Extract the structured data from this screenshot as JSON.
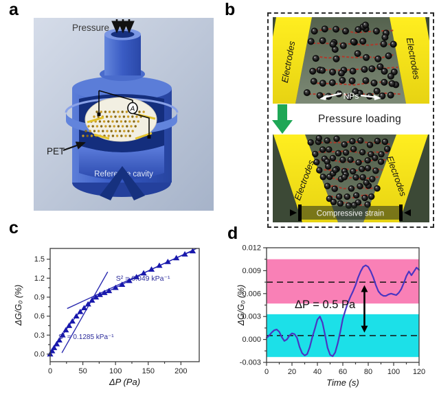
{
  "figure": {
    "panel_labels": {
      "a": "a",
      "b": "b",
      "c": "c",
      "d": "d"
    }
  },
  "panel_a": {
    "pressure": "Pressure",
    "pet": "PET",
    "reference_cavity": "Reference cavity",
    "ammeter": "A",
    "colors": {
      "body_blue": "#3a5ec8",
      "light_blue": "#7b97e4",
      "dark_interior": "#142e7d",
      "membrane": "#f2efe2",
      "gold": "#c99b25"
    }
  },
  "panel_b": {
    "electrodes": "Electrodes",
    "nps": "NPs",
    "pressure_loading": "Pressure loading",
    "compressive_strain": "Compressive strain",
    "colors": {
      "electrode_yellow": "#f6e71c",
      "green_arrow": "#1ea756",
      "red_arrow": "#dd1414",
      "chain_red": "#b83224",
      "photo_bg": "#3c4936"
    }
  },
  "chart_data": [
    {
      "id": "c",
      "type": "scatter",
      "marker": "triangle-up",
      "connect": true,
      "color": "#1818ac",
      "fit_color": "#2c2cb0",
      "xlabel": "ΔP (Pa)",
      "ylabel": "ΔG/G₀ (%)",
      "xlim": [
        0,
        228
      ],
      "ylim": [
        -0.12,
        1.67
      ],
      "xticks": [
        0,
        50,
        100,
        150,
        200
      ],
      "xtick_labels": [
        "0",
        "50",
        "100",
        "150",
        "200"
      ],
      "yticks": [
        0,
        0.3,
        0.6,
        0.9,
        1.2,
        1.5
      ],
      "ytick_labels": [
        "0.0",
        "0.3",
        "0.6",
        "0.9",
        "1.2",
        "1.5"
      ],
      "x": [
        0,
        3,
        6,
        10,
        14,
        19,
        24,
        29,
        34,
        40,
        46,
        52,
        58,
        64,
        70,
        76,
        83,
        90,
        100,
        110,
        121,
        132,
        143,
        155,
        167,
        180,
        193,
        206,
        218
      ],
      "y": [
        0.0,
        0.05,
        0.1,
        0.16,
        0.22,
        0.3,
        0.38,
        0.45,
        0.52,
        0.6,
        0.67,
        0.73,
        0.79,
        0.85,
        0.9,
        0.94,
        0.97,
        1.0,
        1.05,
        1.1,
        1.16,
        1.22,
        1.28,
        1.34,
        1.4,
        1.46,
        1.52,
        1.58,
        1.63
      ],
      "fit_lines": [
        {
          "name": "S1",
          "x1": 18,
          "y1": 0.02,
          "x2": 88,
          "y2": 1.3
        },
        {
          "name": "S2",
          "x1": 26,
          "y1": 0.72,
          "x2": 224,
          "y2": 1.67
        }
      ],
      "annotations": [
        {
          "text": "S² = 0.049 kPa⁻¹",
          "x": 142,
          "y": 1.16,
          "size": 10.5,
          "color": "#2a2a9a"
        },
        {
          "text": "S¹ = 0.1285 kPa⁻¹",
          "x": 55,
          "y": 0.24,
          "size": 10,
          "color": "#2a2a9a"
        }
      ]
    },
    {
      "id": "d",
      "type": "line",
      "color": "#4a35c2",
      "xlabel": "Time (s)",
      "ylabel": "ΔG/G₀ (%)",
      "xlim": [
        0,
        120
      ],
      "ylim": [
        -0.003,
        0.012
      ],
      "xticks": [
        0,
        20,
        40,
        60,
        80,
        100,
        120
      ],
      "xtick_labels": [
        "0",
        "20",
        "40",
        "60",
        "80",
        "100",
        "120"
      ],
      "yticks": [
        -0.003,
        0,
        0.003,
        0.006,
        0.009,
        0.012
      ],
      "ytick_labels": [
        "-0.003",
        "0.000",
        "0.003",
        "0.006",
        "0.009",
        "0.012"
      ],
      "x": [
        0,
        2,
        4,
        6,
        8,
        10,
        12,
        14,
        16,
        18,
        20,
        22,
        24,
        26,
        28,
        30,
        32,
        34,
        36,
        38,
        40,
        42,
        44,
        46,
        48,
        50,
        52,
        54,
        56,
        58,
        60,
        62,
        64,
        66,
        68,
        70,
        72,
        74,
        76,
        78,
        80,
        82,
        84,
        86,
        88,
        90,
        92,
        94,
        96,
        98,
        100,
        102,
        104,
        106,
        108,
        110,
        112,
        114,
        116,
        118,
        120
      ],
      "y": [
        0.0002,
        0.0005,
        0.0009,
        0.0012,
        0.0013,
        0.001,
        0.0003,
        -0.0002,
        0.0,
        0.0005,
        0.0008,
        0.0007,
        0.0002,
        -0.001,
        -0.0018,
        -0.0021,
        -0.0019,
        -0.001,
        0.0003,
        0.0014,
        0.0026,
        0.003,
        0.0022,
        0.0006,
        -0.0011,
        -0.002,
        -0.0022,
        -0.0017,
        -0.0005,
        0.001,
        0.0027,
        0.0038,
        0.0048,
        0.0056,
        0.0063,
        0.0071,
        0.0081,
        0.0089,
        0.0095,
        0.0097,
        0.0095,
        0.0089,
        0.0081,
        0.0071,
        0.0063,
        0.0059,
        0.0057,
        0.0057,
        0.0059,
        0.006,
        0.0059,
        0.0058,
        0.0061,
        0.0066,
        0.0074,
        0.0083,
        0.0089,
        0.0084,
        0.0089,
        0.0094,
        0.0091
      ],
      "bands": [
        {
          "y1": -0.0023,
          "y2": 0.0033,
          "color": "#1ce0e8"
        },
        {
          "y1": 0.0047,
          "y2": 0.0105,
          "color": "#f980b6"
        }
      ],
      "dashed_lines": [
        0.0005,
        0.0075
      ],
      "arrow": {
        "x": 77,
        "y1": 0.0009,
        "y2": 0.0071
      },
      "annotations": [
        {
          "text": "ΔP = 0.5 Pa",
          "x": 46,
          "y": 0.0041,
          "size": 16.5,
          "color": "#111111"
        }
      ]
    }
  ]
}
